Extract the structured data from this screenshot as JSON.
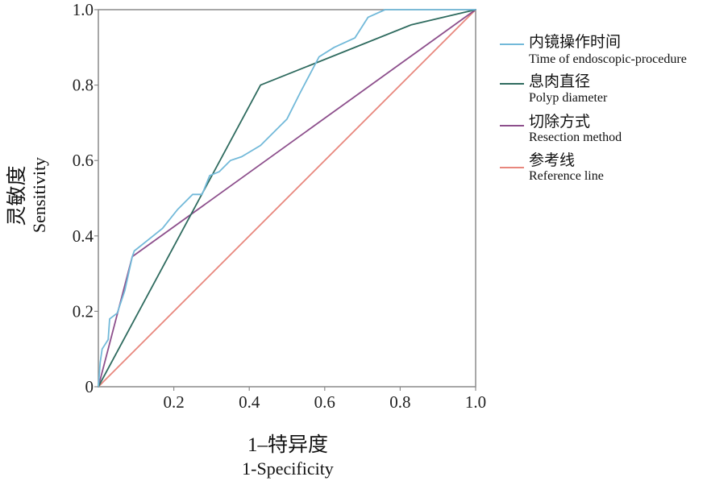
{
  "chart_data": {
    "type": "line",
    "xlabel": "1–特异度",
    "xlabel_en": "1-Specificity",
    "ylabel": "灵敏度",
    "ylabel_en": "Sensitivity",
    "xlim": [
      0,
      1
    ],
    "ylim": [
      0,
      1
    ],
    "grid": false,
    "legend_position": "right",
    "frame_color": "#8a8a8a",
    "x_ticks": [
      {
        "value": 0.2,
        "label": "0.2"
      },
      {
        "value": 0.4,
        "label": "0.4"
      },
      {
        "value": 0.6,
        "label": "0.6"
      },
      {
        "value": 0.8,
        "label": "0.8"
      },
      {
        "value": 1.0,
        "label": "1.0"
      }
    ],
    "y_ticks": [
      {
        "value": 0,
        "label": "0"
      },
      {
        "value": 0.2,
        "label": "0.2"
      },
      {
        "value": 0.4,
        "label": "0.4"
      },
      {
        "value": 0.6,
        "label": "0.6"
      },
      {
        "value": 0.8,
        "label": "0.8"
      },
      {
        "value": 1.0,
        "label": "1.0"
      }
    ],
    "series": [
      {
        "name": "内镜操作时间",
        "name_en": "Time of endoscopic-procedure",
        "color": "#72b9d9",
        "x": [
          0,
          0.005,
          0.01,
          0.026,
          0.03,
          0.05,
          0.07,
          0.09,
          0.095,
          0.12,
          0.17,
          0.21,
          0.25,
          0.275,
          0.295,
          0.32,
          0.35,
          0.38,
          0.43,
          0.5,
          0.535,
          0.585,
          0.625,
          0.68,
          0.715,
          0.76,
          1.0
        ],
        "y": [
          0,
          0.065,
          0.1,
          0.125,
          0.18,
          0.195,
          0.255,
          0.345,
          0.36,
          0.38,
          0.42,
          0.47,
          0.51,
          0.51,
          0.56,
          0.57,
          0.6,
          0.61,
          0.64,
          0.71,
          0.78,
          0.875,
          0.9,
          0.925,
          0.98,
          1.0,
          1.0
        ]
      },
      {
        "name": "息肉直径",
        "name_en": "Polyp diameter",
        "color": "#2f6b5f",
        "x": [
          0,
          0.43,
          0.83,
          1.0
        ],
        "y": [
          0,
          0.8,
          0.96,
          1.0
        ]
      },
      {
        "name": "切除方式",
        "name_en": "Resection method",
        "color": "#8d4f8c",
        "x": [
          0,
          0.09,
          1.0
        ],
        "y": [
          0,
          0.345,
          1.0
        ]
      },
      {
        "name": "参考线",
        "name_en": "Reference line",
        "color": "#e8877d",
        "x": [
          0,
          1.0
        ],
        "y": [
          0,
          1.0
        ]
      }
    ]
  }
}
